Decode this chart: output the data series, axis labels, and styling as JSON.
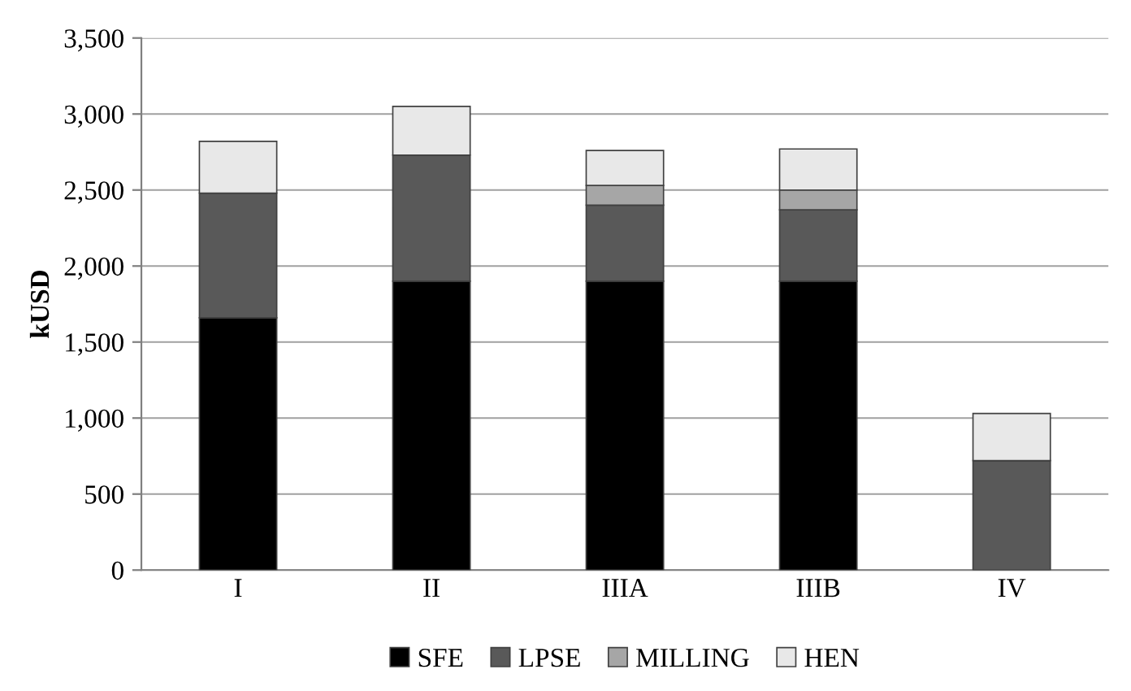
{
  "chart_data": {
    "type": "bar",
    "stacked": true,
    "ylabel": "kUSD",
    "categories": [
      "I",
      "II",
      "IIIA",
      "IIIB",
      "IV"
    ],
    "series": [
      {
        "name": "SFE",
        "color": "#000000",
        "values": [
          1660,
          1900,
          1900,
          1900,
          0
        ]
      },
      {
        "name": "LPSE",
        "color": "#595959",
        "values": [
          820,
          830,
          500,
          470,
          720
        ]
      },
      {
        "name": "MILLING",
        "color": "#a6a6a6",
        "values": [
          0,
          0,
          130,
          130,
          0
        ]
      },
      {
        "name": "HEN",
        "color": "#e8e8e8",
        "values": [
          340,
          320,
          230,
          270,
          310
        ]
      }
    ],
    "ylim": [
      0,
      3500
    ],
    "yticks": [
      0,
      {
        "value": 500,
        "label": "500"
      },
      {
        "value": 1000,
        "label": "1,000"
      },
      {
        "value": 1500,
        "label": "1,500"
      },
      {
        "value": 2000,
        "label": "2,000"
      },
      {
        "value": 2500,
        "label": "2,500"
      },
      {
        "value": 3000,
        "label": "3,000"
      },
      {
        "value": 3500,
        "label": "3,500"
      }
    ],
    "grid": "y",
    "legend": "bottom"
  }
}
